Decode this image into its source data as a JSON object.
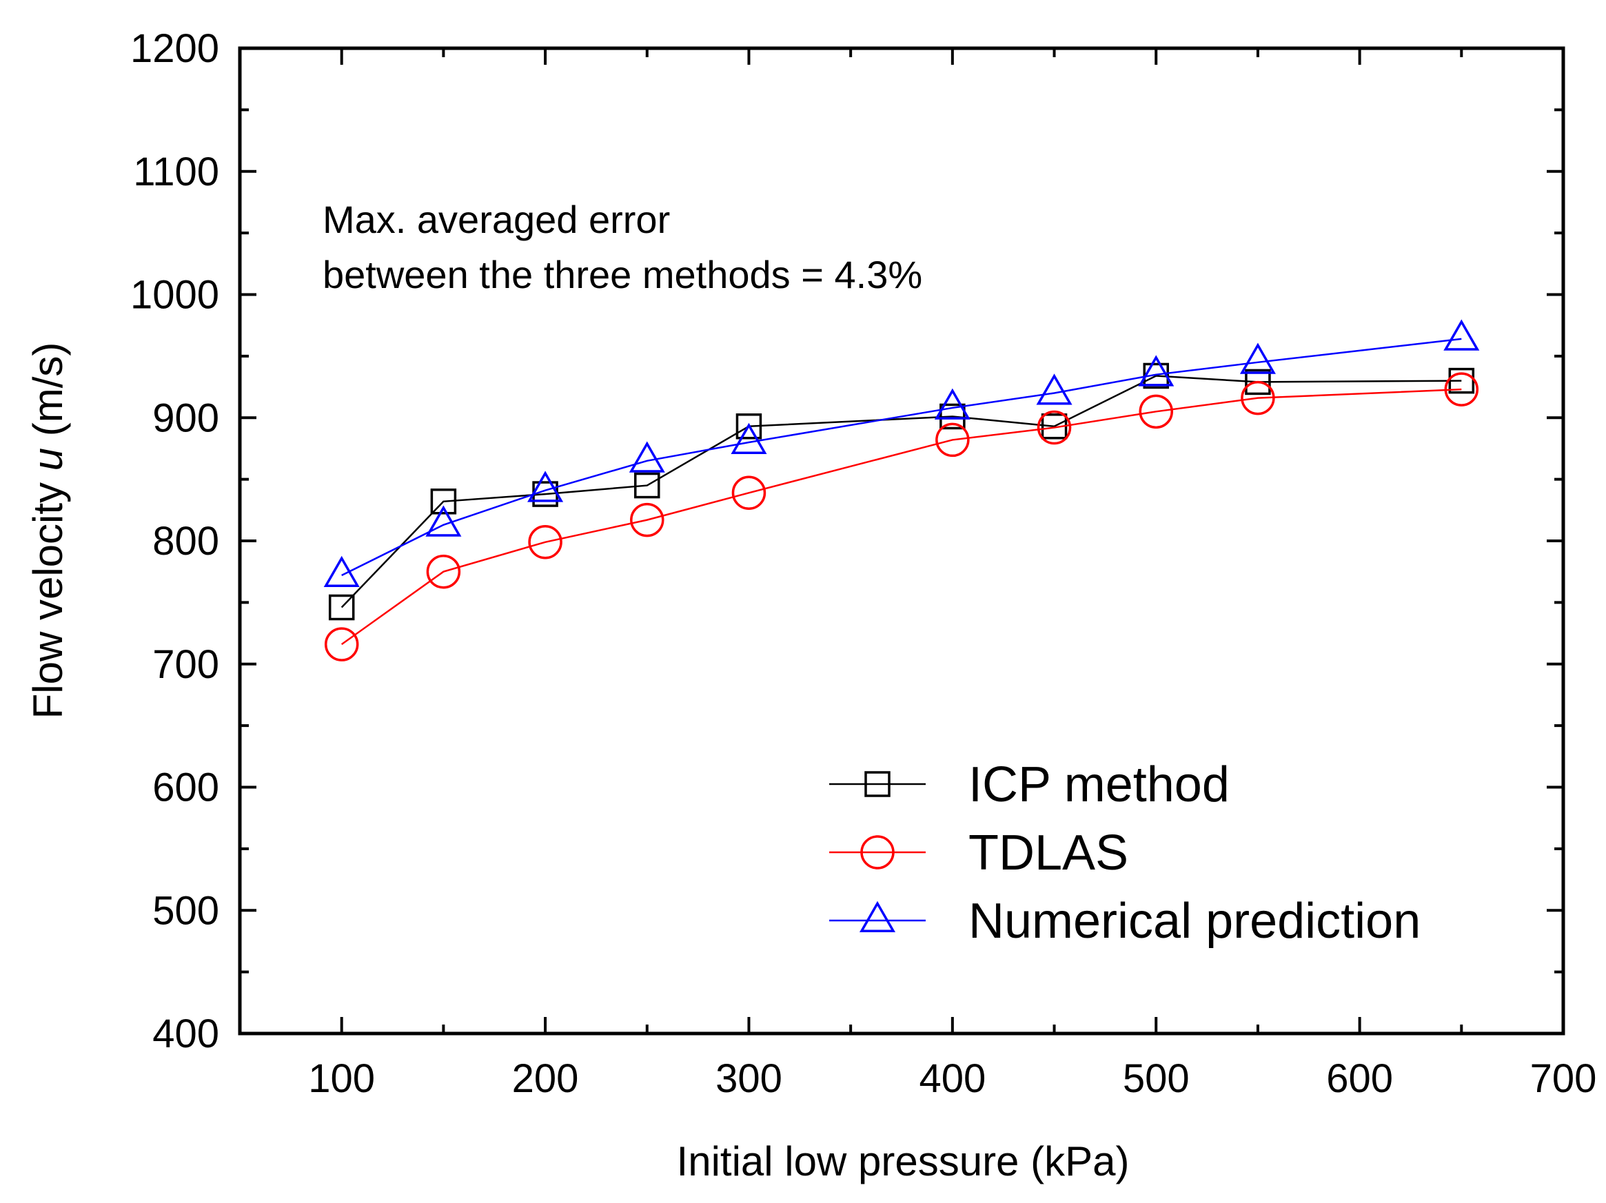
{
  "chart_data": {
    "type": "line",
    "title": "",
    "xlabel": "Initial low pressure (kPa)",
    "ylabel": {
      "prefix": "Flow velocity ",
      "variable": "u",
      "suffix": " (m/s)"
    },
    "xlim": [
      50,
      700
    ],
    "ylim": [
      400,
      1200
    ],
    "xticks": [
      100,
      200,
      300,
      400,
      500,
      600,
      700
    ],
    "yticks": [
      400,
      500,
      600,
      700,
      800,
      900,
      1000,
      1100,
      1200
    ],
    "x_minor_step": 50,
    "y_minor_step": 50,
    "grid": false,
    "legend_position": "bottom-right",
    "annotation": [
      "Max. averaged error",
      "between the three methods = 4.3%"
    ],
    "series": [
      {
        "name": "ICP method",
        "color": "#000000",
        "marker": "square",
        "x": [
          100,
          150,
          200,
          250,
          300,
          400,
          450,
          500,
          550,
          650
        ],
        "values": [
          746,
          832,
          838,
          845,
          893,
          901,
          893,
          934,
          929,
          930
        ]
      },
      {
        "name": "TDLAS",
        "color": "#ff0000",
        "marker": "circle",
        "x": [
          100,
          150,
          200,
          250,
          300,
          400,
          450,
          500,
          550,
          650
        ],
        "values": [
          716,
          775,
          799,
          817,
          839,
          882,
          892,
          905,
          916,
          923
        ]
      },
      {
        "name": "Numerical prediction",
        "color": "#0000ff",
        "marker": "triangle",
        "x": [
          100,
          150,
          200,
          250,
          300,
          400,
          450,
          500,
          550,
          650
        ],
        "values": [
          772,
          813,
          841,
          865,
          880,
          908,
          920,
          935,
          945,
          964
        ]
      }
    ]
  }
}
